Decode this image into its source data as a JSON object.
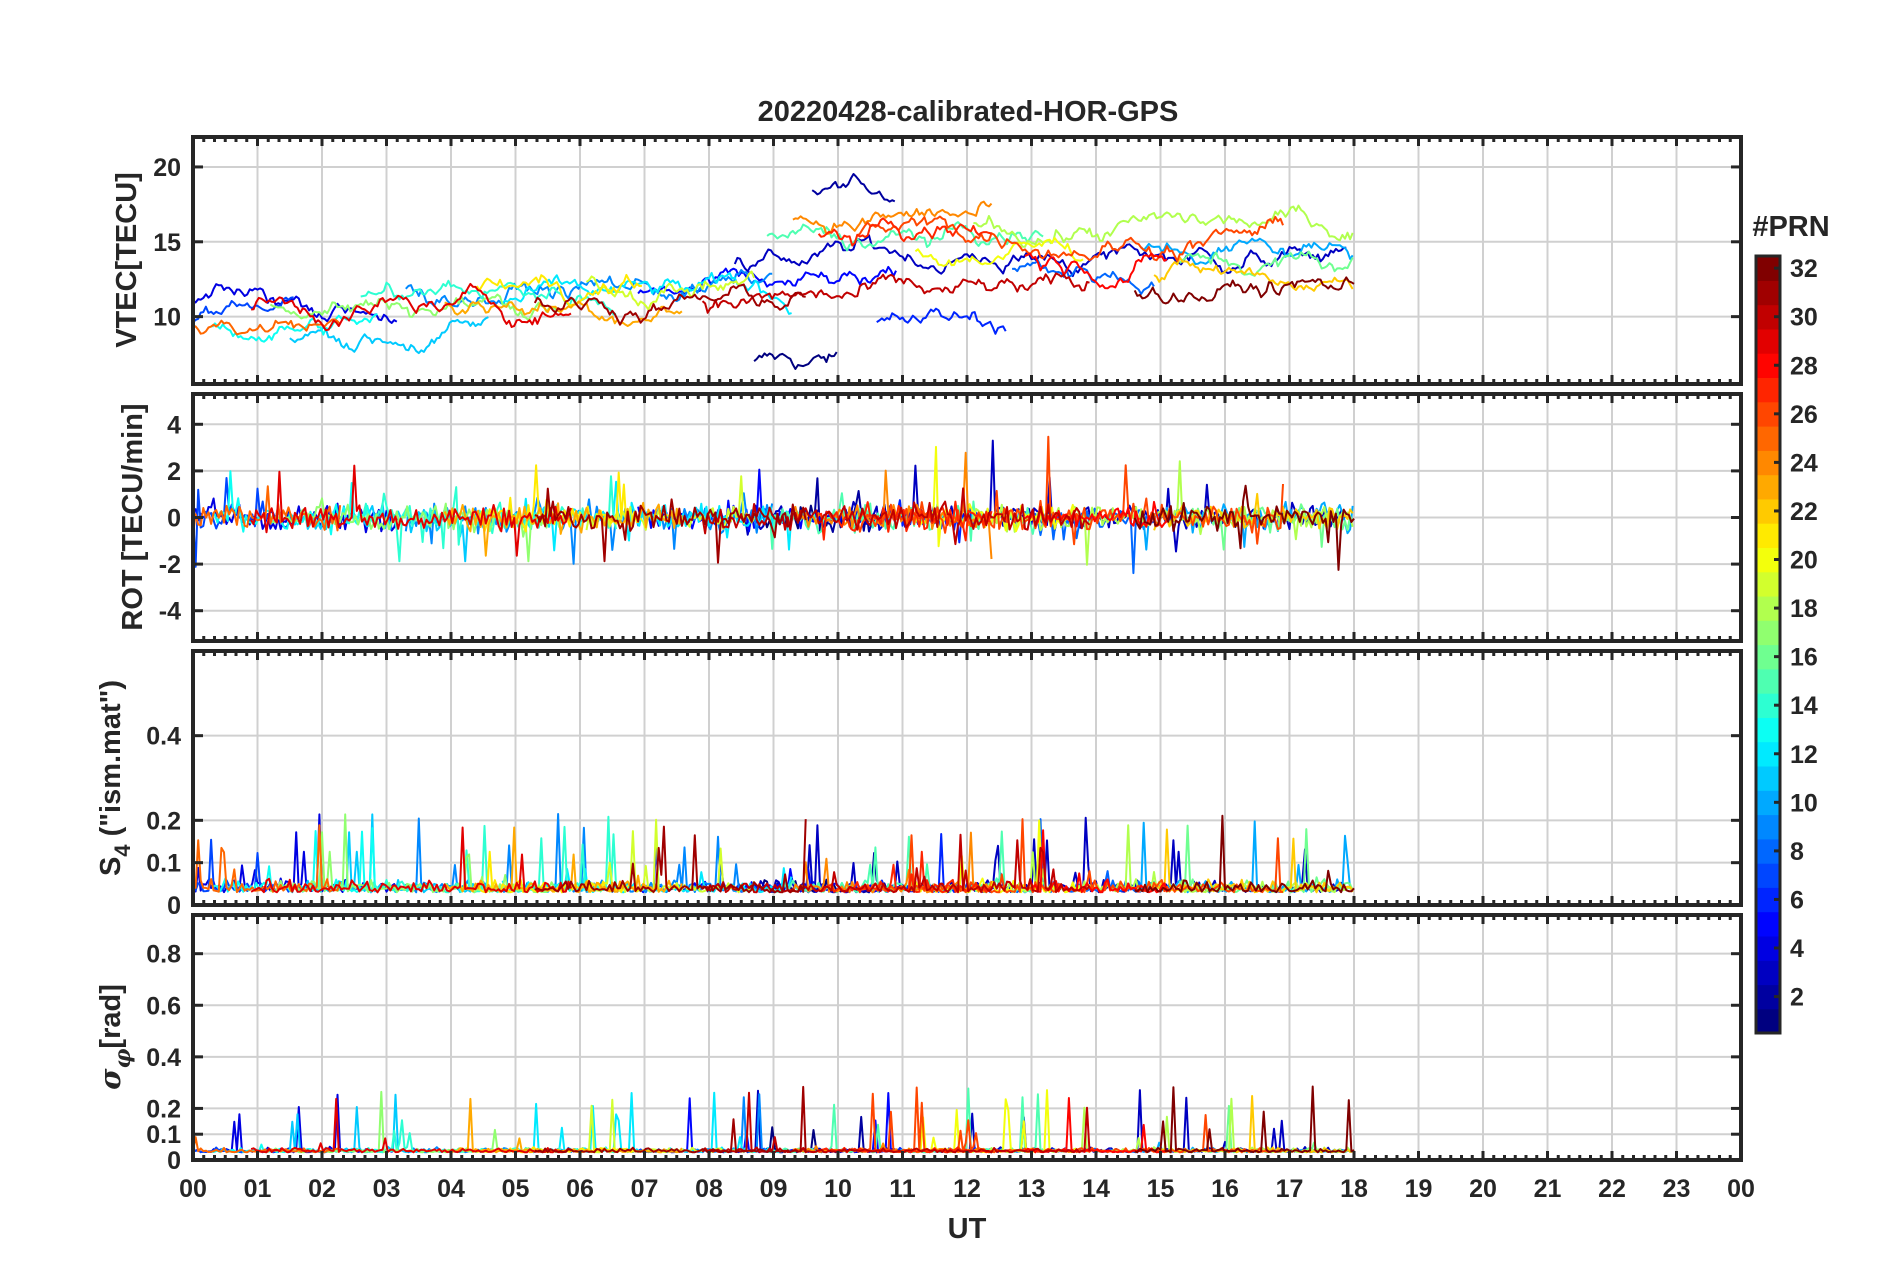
{
  "chart_data": [
    {
      "type": "line",
      "title": "20220428-calibrated-HOR-GPS",
      "ylabel": "VTEC[TECU]",
      "xlim": [
        0,
        24
      ],
      "ylim": [
        5.5,
        22
      ],
      "yticks": [
        10,
        15,
        20
      ],
      "grid": true,
      "data_end_hour": 18,
      "series_color_by": "PRN"
    },
    {
      "type": "line",
      "ylabel": "ROT [TECU/min]",
      "xlim": [
        0,
        24
      ],
      "ylim": [
        -5.3,
        5.3
      ],
      "yticks": [
        -4,
        -2,
        0,
        2,
        4
      ],
      "grid": true,
      "data_end_hour": 18,
      "series_color_by": "PRN"
    },
    {
      "type": "line",
      "ylabel_main": "S",
      "ylabel_sub": "4",
      "ylabel_rest": " (\"ism.mat\")",
      "xlim": [
        0,
        24
      ],
      "ylim": [
        0,
        0.6
      ],
      "yticks": [
        0,
        0.1,
        0.2,
        0.4
      ],
      "grid": true,
      "data_end_hour": 18,
      "series_color_by": "PRN"
    },
    {
      "type": "line",
      "ylabel_main": "σ",
      "ylabel_sub": "φ",
      "ylabel_rest": "[rad]",
      "xlim": [
        0,
        24
      ],
      "ylim": [
        0,
        0.95
      ],
      "yticks": [
        0,
        0.1,
        0.2,
        0.4,
        0.6,
        0.8
      ],
      "grid": true,
      "data_end_hour": 18,
      "series_color_by": "PRN"
    }
  ],
  "x_axis": {
    "label": "UT",
    "ticks": [
      "00",
      "01",
      "02",
      "03",
      "04",
      "05",
      "06",
      "07",
      "08",
      "09",
      "10",
      "11",
      "12",
      "13",
      "14",
      "15",
      "16",
      "17",
      "18",
      "19",
      "20",
      "21",
      "22",
      "23",
      "00"
    ]
  },
  "colorbar": {
    "title": "#PRN",
    "range": [
      1,
      32
    ],
    "ticks": [
      2,
      4,
      6,
      8,
      10,
      12,
      14,
      16,
      18,
      20,
      22,
      24,
      26,
      28,
      30,
      32
    ],
    "colormap": "jet",
    "colors": [
      "#00008f",
      "#0000ff",
      "#0080ff",
      "#00ffff",
      "#80ff80",
      "#ffff00",
      "#ff8000",
      "#ff0000",
      "#800000"
    ]
  },
  "prn_series": [
    {
      "prn": 1,
      "start": 8.7,
      "end": 10.0,
      "vtec": 6.8
    },
    {
      "prn": 2,
      "start": 9.6,
      "end": 10.9,
      "vtec": 18.5
    },
    {
      "prn": 3,
      "start": 8.4,
      "end": 17.9,
      "vtec": 14.0
    },
    {
      "prn": 4,
      "start": 0.0,
      "end": 3.2,
      "vtec": 11.0
    },
    {
      "prn": 5,
      "start": 6.9,
      "end": 10.9,
      "vtec": 11.5
    },
    {
      "prn": 6,
      "start": 10.6,
      "end": 12.6,
      "vtec": 9.5
    },
    {
      "prn": 7,
      "start": 0.0,
      "end": 1.6,
      "vtec": 10.0
    },
    {
      "prn": 8,
      "start": 12.7,
      "end": 14.9,
      "vtec": 13.0
    },
    {
      "prn": 9,
      "start": 3.3,
      "end": 9.0,
      "vtec": 12.0
    },
    {
      "prn": 10,
      "start": 14.7,
      "end": 18.0,
      "vtec": 14.5
    },
    {
      "prn": 11,
      "start": 1.5,
      "end": 4.6,
      "vtec": 9.0
    },
    {
      "prn": 12,
      "start": 4.8,
      "end": 9.3,
      "vtec": 11.0
    },
    {
      "prn": 13,
      "start": 0.3,
      "end": 2.9,
      "vtec": 9.5
    },
    {
      "prn": 14,
      "start": 2.6,
      "end": 6.6,
      "vtec": 11.5
    },
    {
      "prn": 15,
      "start": 8.9,
      "end": 13.2,
      "vtec": 15.0
    },
    {
      "prn": 16,
      "start": 15.3,
      "end": 18.0,
      "vtec": 13.5
    },
    {
      "prn": 17,
      "start": 1.2,
      "end": 5.7,
      "vtec": 11.0
    },
    {
      "prn": 18,
      "start": 12.1,
      "end": 18.0,
      "vtec": 16.0
    },
    {
      "prn": 19,
      "start": 6.1,
      "end": 8.7,
      "vtec": 12.5
    },
    {
      "prn": 20,
      "start": 11.2,
      "end": 13.8,
      "vtec": 14.5
    },
    {
      "prn": 21,
      "start": 4.4,
      "end": 7.0,
      "vtec": 12.0
    },
    {
      "prn": 22,
      "start": 14.9,
      "end": 18.0,
      "vtec": 12.5
    },
    {
      "prn": 23,
      "start": 3.9,
      "end": 7.6,
      "vtec": 11.0
    },
    {
      "prn": 24,
      "start": 9.3,
      "end": 12.4,
      "vtec": 16.5
    },
    {
      "prn": 25,
      "start": 0.0,
      "end": 2.3,
      "vtec": 9.5
    },
    {
      "prn": 26,
      "start": 10.3,
      "end": 16.9,
      "vtec": 15.5
    },
    {
      "prn": 27,
      "start": 9.7,
      "end": 12.4,
      "vtec": 15.5
    },
    {
      "prn": 28,
      "start": 12.9,
      "end": 15.1,
      "vtec": 14.0
    },
    {
      "prn": 29,
      "start": 0.9,
      "end": 5.9,
      "vtec": 10.5
    },
    {
      "prn": 30,
      "start": 7.9,
      "end": 13.9,
      "vtec": 11.0
    },
    {
      "prn": 31,
      "start": 5.3,
      "end": 9.5,
      "vtec": 11.0
    },
    {
      "prn": 32,
      "start": 14.6,
      "end": 18.0,
      "vtec": 12.0
    }
  ]
}
